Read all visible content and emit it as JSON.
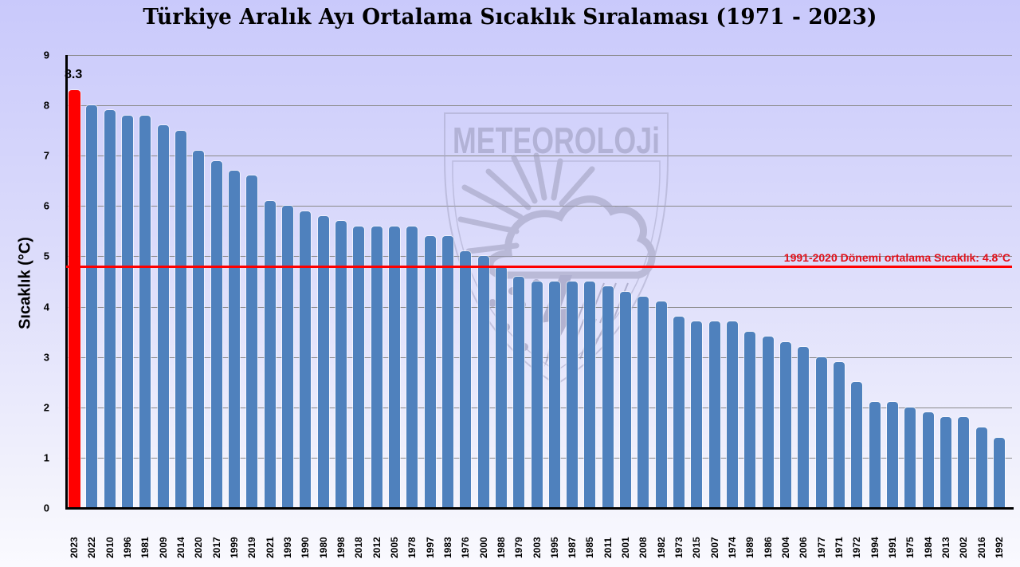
{
  "chart_data": {
    "type": "bar",
    "title": "Türkiye Aralık Ayı Ortalama Sıcaklık Sıralaması (1971 - 2023)",
    "xlabel": "",
    "ylabel": "Sıcaklık (°C)",
    "ylim": [
      0,
      9
    ],
    "yticks": [
      0,
      1,
      2,
      3,
      4,
      5,
      6,
      7,
      8,
      9
    ],
    "grid": true,
    "legend": "none",
    "categories": [
      "2023",
      "2022",
      "2010",
      "1996",
      "1981",
      "2009",
      "2014",
      "2020",
      "2017",
      "1999",
      "2019",
      "2021",
      "1993",
      "1990",
      "1980",
      "1998",
      "2018",
      "2012",
      "2005",
      "1978",
      "1997",
      "1983",
      "1976",
      "2000",
      "1988",
      "1979",
      "2003",
      "1995",
      "1987",
      "1985",
      "2011",
      "2001",
      "2008",
      "1982",
      "1973",
      "2015",
      "2007",
      "1974",
      "1989",
      "1986",
      "2004",
      "2006",
      "1977",
      "1971",
      "1972",
      "1994",
      "1991",
      "1975",
      "1984",
      "2013",
      "2002",
      "2016",
      "1992"
    ],
    "values": [
      8.3,
      8.0,
      7.9,
      7.8,
      7.8,
      7.6,
      7.5,
      7.1,
      6.9,
      6.7,
      6.6,
      6.1,
      6.0,
      5.9,
      5.8,
      5.7,
      5.6,
      5.6,
      5.6,
      5.6,
      5.4,
      5.4,
      5.1,
      5.0,
      4.8,
      4.6,
      4.5,
      4.5,
      4.5,
      4.5,
      4.4,
      4.3,
      4.2,
      4.1,
      3.8,
      3.7,
      3.7,
      3.7,
      3.5,
      3.4,
      3.3,
      3.2,
      3.0,
      2.9,
      2.5,
      2.1,
      2.1,
      2.0,
      1.9,
      1.8,
      1.8,
      1.6,
      1.4
    ],
    "highlight_index": 0,
    "highlight_label": "8.3",
    "reference_line": {
      "value": 4.8,
      "label": "1991-2020 Dönemi ortalama Sıcaklık: 4.8°C"
    },
    "annotations": [
      "8.3",
      "1991-2020 Dönemi ortalama Sıcaklık: 4.8°C"
    ],
    "watermark": "METEOROLOJİ"
  },
  "colors": {
    "bar": "#4f81bd",
    "highlight_bar": "#ff0000",
    "reference_line": "#ff0000",
    "reference_label": "#e3101a"
  },
  "watermark_text": "METEOROLOJi"
}
